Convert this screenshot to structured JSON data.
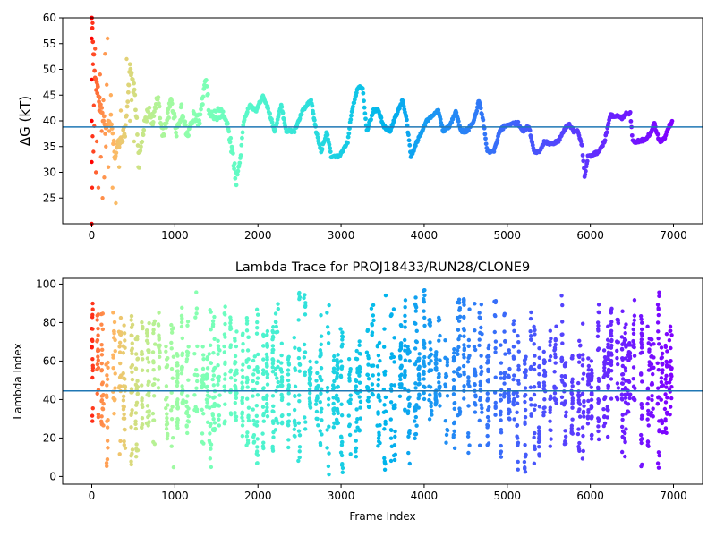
{
  "chart_data": [
    {
      "type": "scatter",
      "title": "",
      "xlabel": "",
      "ylabel": "ΔG (kT)",
      "xlim": [
        -350,
        7350
      ],
      "ylim": [
        20,
        60
      ],
      "xticks": [
        0,
        1000,
        2000,
        3000,
        4000,
        5000,
        6000,
        7000
      ],
      "yticks": [
        25,
        30,
        35,
        40,
        45,
        50,
        55,
        60
      ],
      "hline": 38.8,
      "colormap": "rainbow (red at frame 0 → violet at late frames)",
      "hline_color": "#1f77b4",
      "grid": false,
      "trace_points": [
        {
          "x": 0,
          "y": 60
        },
        {
          "x": 40,
          "y": 48
        },
        {
          "x": 80,
          "y": 45
        },
        {
          "x": 120,
          "y": 42
        },
        {
          "x": 170,
          "y": 38
        },
        {
          "x": 230,
          "y": 40
        },
        {
          "x": 280,
          "y": 33
        },
        {
          "x": 330,
          "y": 36
        },
        {
          "x": 400,
          "y": 38
        },
        {
          "x": 460,
          "y": 50
        },
        {
          "x": 520,
          "y": 45
        },
        {
          "x": 570,
          "y": 32
        },
        {
          "x": 620,
          "y": 38
        },
        {
          "x": 680,
          "y": 42
        },
        {
          "x": 740,
          "y": 40
        },
        {
          "x": 800,
          "y": 45
        },
        {
          "x": 850,
          "y": 37
        },
        {
          "x": 900,
          "y": 40
        },
        {
          "x": 960,
          "y": 44
        },
        {
          "x": 1020,
          "y": 38
        },
        {
          "x": 1080,
          "y": 42
        },
        {
          "x": 1150,
          "y": 37
        },
        {
          "x": 1230,
          "y": 41
        },
        {
          "x": 1300,
          "y": 40
        },
        {
          "x": 1370,
          "y": 48
        },
        {
          "x": 1420,
          "y": 41
        },
        {
          "x": 1500,
          "y": 41
        },
        {
          "x": 1580,
          "y": 42
        },
        {
          "x": 1650,
          "y": 38
        },
        {
          "x": 1700,
          "y": 33
        },
        {
          "x": 1740,
          "y": 28.5
        },
        {
          "x": 1780,
          "y": 32
        },
        {
          "x": 1830,
          "y": 40
        },
        {
          "x": 1900,
          "y": 43
        },
        {
          "x": 1980,
          "y": 42
        },
        {
          "x": 2060,
          "y": 45
        },
        {
          "x": 2130,
          "y": 42
        },
        {
          "x": 2200,
          "y": 38
        },
        {
          "x": 2280,
          "y": 43
        },
        {
          "x": 2340,
          "y": 38
        },
        {
          "x": 2440,
          "y": 38
        },
        {
          "x": 2540,
          "y": 42
        },
        {
          "x": 2640,
          "y": 44
        },
        {
          "x": 2700,
          "y": 38
        },
        {
          "x": 2760,
          "y": 34
        },
        {
          "x": 2830,
          "y": 38
        },
        {
          "x": 2880,
          "y": 33
        },
        {
          "x": 2960,
          "y": 33
        },
        {
          "x": 3020,
          "y": 34
        },
        {
          "x": 3080,
          "y": 36
        },
        {
          "x": 3130,
          "y": 42
        },
        {
          "x": 3200,
          "y": 46.5
        },
        {
          "x": 3260,
          "y": 46.5
        },
        {
          "x": 3310,
          "y": 38
        },
        {
          "x": 3390,
          "y": 42
        },
        {
          "x": 3450,
          "y": 42
        },
        {
          "x": 3510,
          "y": 39
        },
        {
          "x": 3590,
          "y": 38
        },
        {
          "x": 3660,
          "y": 41
        },
        {
          "x": 3740,
          "y": 44
        },
        {
          "x": 3790,
          "y": 40
        },
        {
          "x": 3840,
          "y": 33
        },
        {
          "x": 3890,
          "y": 35
        },
        {
          "x": 3970,
          "y": 38
        },
        {
          "x": 4030,
          "y": 40
        },
        {
          "x": 4110,
          "y": 41
        },
        {
          "x": 4170,
          "y": 42
        },
        {
          "x": 4230,
          "y": 38
        },
        {
          "x": 4310,
          "y": 39
        },
        {
          "x": 4380,
          "y": 42
        },
        {
          "x": 4440,
          "y": 38
        },
        {
          "x": 4520,
          "y": 38
        },
        {
          "x": 4600,
          "y": 40
        },
        {
          "x": 4660,
          "y": 44
        },
        {
          "x": 4710,
          "y": 40
        },
        {
          "x": 4760,
          "y": 34
        },
        {
          "x": 4840,
          "y": 34
        },
        {
          "x": 4910,
          "y": 38
        },
        {
          "x": 4970,
          "y": 39
        },
        {
          "x": 5050,
          "y": 39.5
        },
        {
          "x": 5130,
          "y": 39.5
        },
        {
          "x": 5190,
          "y": 38
        },
        {
          "x": 5260,
          "y": 39
        },
        {
          "x": 5320,
          "y": 34
        },
        {
          "x": 5380,
          "y": 34
        },
        {
          "x": 5450,
          "y": 36
        },
        {
          "x": 5530,
          "y": 35.5
        },
        {
          "x": 5610,
          "y": 36
        },
        {
          "x": 5680,
          "y": 38
        },
        {
          "x": 5740,
          "y": 39.5
        },
        {
          "x": 5800,
          "y": 38
        },
        {
          "x": 5850,
          "y": 38
        },
        {
          "x": 5900,
          "y": 35
        },
        {
          "x": 5930,
          "y": 29
        },
        {
          "x": 5970,
          "y": 33
        },
        {
          "x": 6030,
          "y": 33.5
        },
        {
          "x": 6100,
          "y": 34
        },
        {
          "x": 6170,
          "y": 36
        },
        {
          "x": 6240,
          "y": 41
        },
        {
          "x": 6310,
          "y": 41
        },
        {
          "x": 6380,
          "y": 40.5
        },
        {
          "x": 6430,
          "y": 41.5
        },
        {
          "x": 6480,
          "y": 41.5
        },
        {
          "x": 6510,
          "y": 36
        },
        {
          "x": 6590,
          "y": 36
        },
        {
          "x": 6660,
          "y": 36.5
        },
        {
          "x": 6720,
          "y": 37.5
        },
        {
          "x": 6770,
          "y": 39.5
        },
        {
          "x": 6830,
          "y": 36
        },
        {
          "x": 6890,
          "y": 36.5
        },
        {
          "x": 6950,
          "y": 39
        },
        {
          "x": 6990,
          "y": 40
        }
      ],
      "early_scatter": [
        {
          "x": 0,
          "y": 20
        },
        {
          "x": 0,
          "y": 32
        },
        {
          "x": 0,
          "y": 40
        },
        {
          "x": 0,
          "y": 48
        },
        {
          "x": 0,
          "y": 56
        },
        {
          "x": 5,
          "y": 27
        },
        {
          "x": 10,
          "y": 59
        },
        {
          "x": 10,
          "y": 37
        },
        {
          "x": 15,
          "y": 51
        },
        {
          "x": 20,
          "y": 34
        },
        {
          "x": 25,
          "y": 43
        },
        {
          "x": 30,
          "y": 39
        },
        {
          "x": 40,
          "y": 54
        },
        {
          "x": 50,
          "y": 30
        },
        {
          "x": 60,
          "y": 36
        },
        {
          "x": 70,
          "y": 47
        },
        {
          "x": 80,
          "y": 27
        },
        {
          "x": 90,
          "y": 42
        },
        {
          "x": 100,
          "y": 49
        },
        {
          "x": 110,
          "y": 33
        },
        {
          "x": 120,
          "y": 38
        },
        {
          "x": 130,
          "y": 25
        },
        {
          "x": 140,
          "y": 44
        },
        {
          "x": 150,
          "y": 29
        },
        {
          "x": 160,
          "y": 53
        },
        {
          "x": 170,
          "y": 35
        },
        {
          "x": 180,
          "y": 47
        },
        {
          "x": 190,
          "y": 56
        },
        {
          "x": 200,
          "y": 31
        },
        {
          "x": 210,
          "y": 38
        },
        {
          "x": 230,
          "y": 45
        },
        {
          "x": 250,
          "y": 27
        },
        {
          "x": 270,
          "y": 34
        },
        {
          "x": 290,
          "y": 24
        },
        {
          "x": 310,
          "y": 36
        },
        {
          "x": 330,
          "y": 31
        },
        {
          "x": 350,
          "y": 42
        },
        {
          "x": 380,
          "y": 37
        },
        {
          "x": 420,
          "y": 52
        },
        {
          "x": 440,
          "y": 47
        },
        {
          "x": 460,
          "y": 40
        },
        {
          "x": 480,
          "y": 44
        },
        {
          "x": 510,
          "y": 36
        },
        {
          "x": 560,
          "y": 31
        },
        {
          "x": 580,
          "y": 34
        }
      ]
    },
    {
      "type": "scatter",
      "title": "Lambda Trace for PROJ18433/RUN28/CLONE9",
      "xlabel": "Frame Index",
      "ylabel": "Lambda Index",
      "xlim": [
        -350,
        7350
      ],
      "ylim": [
        -4,
        103
      ],
      "xticks": [
        0,
        1000,
        2000,
        3000,
        4000,
        5000,
        6000,
        7000
      ],
      "yticks": [
        0,
        20,
        40,
        60,
        80,
        100
      ],
      "hline": 44.5,
      "colormap": "rainbow (red at frame 0 → violet at late frames)",
      "hline_color": "#1f77b4",
      "grid": false,
      "frame_range": [
        0,
        7000
      ],
      "lambda_range": [
        0,
        99
      ]
    }
  ]
}
